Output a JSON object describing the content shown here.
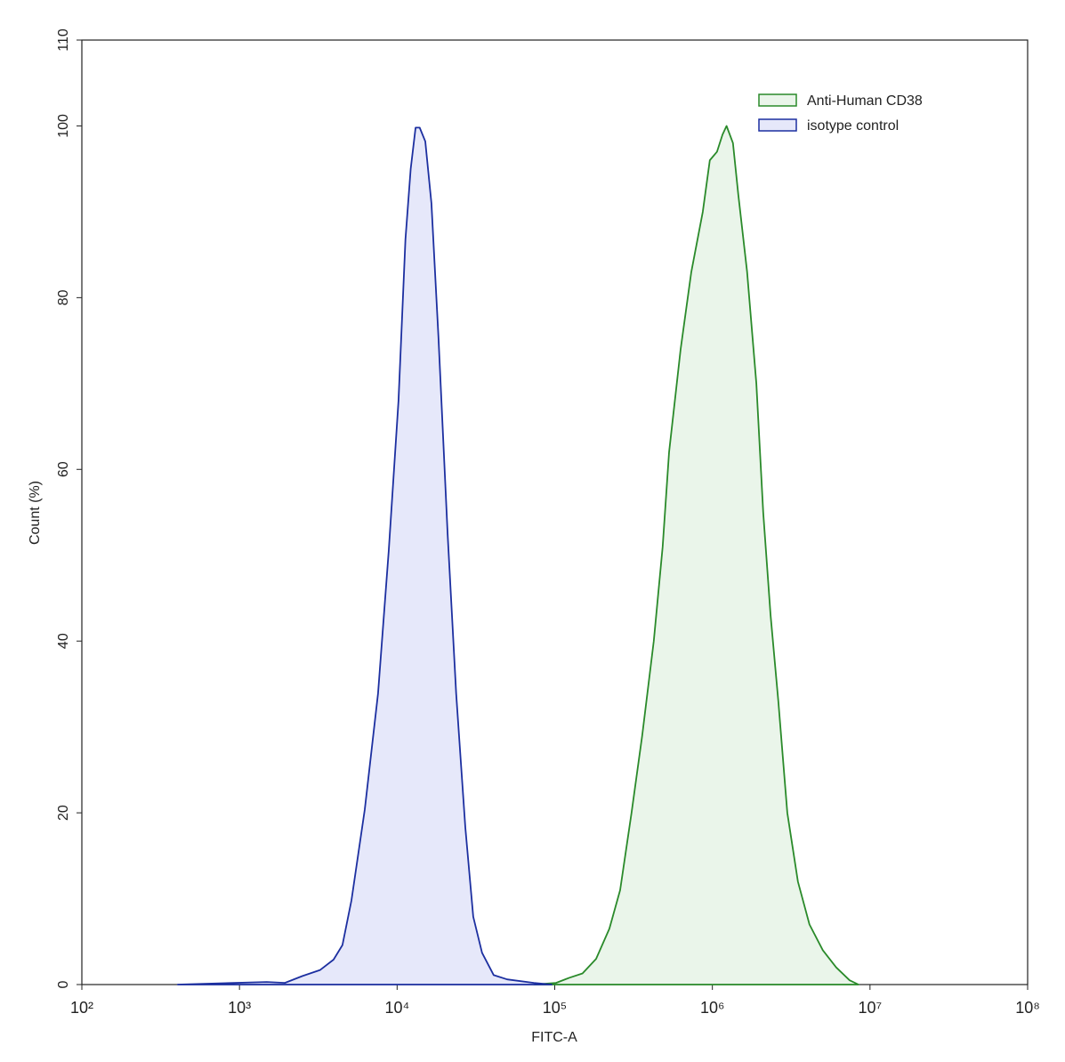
{
  "chart_data": {
    "type": "area",
    "xlabel": "FITC-A",
    "ylabel": "Count  (%)",
    "xscale": "log",
    "xlim": [
      100,
      100000000
    ],
    "xticks": [
      {
        "value": 100,
        "label": "10²"
      },
      {
        "value": 1000,
        "label": "10³"
      },
      {
        "value": 10000,
        "label": "10⁴"
      },
      {
        "value": 100000,
        "label": "10⁵"
      },
      {
        "value": 1000000,
        "label": "10⁶"
      },
      {
        "value": 10000000,
        "label": "10⁷"
      },
      {
        "value": 100000000,
        "label": "10⁸"
      }
    ],
    "ylim": [
      0,
      110
    ],
    "yticks": [
      0,
      20,
      40,
      60,
      80,
      100,
      110
    ],
    "legend": "upper-right",
    "series": [
      {
        "name": "Anti-Human CD38",
        "color": "#2a8a2a",
        "fill_color": "#eaf5ea",
        "x": [
          73600,
          102000,
          124000,
          150000,
          183000,
          222000,
          260000,
          307000,
          359000,
          425000,
          484000,
          531000,
          629000,
          735000,
          869000,
          964000,
          1070000,
          1160000,
          1230000,
          1350000,
          1460000,
          1660000,
          1900000,
          2100000,
          2340000,
          2620000,
          2990000,
          3490000,
          4130000,
          5020000,
          6100000,
          7420000,
          8450000
        ],
        "values": [
          0,
          0.2,
          0.8,
          1.3,
          3,
          6.5,
          11,
          20,
          29,
          40,
          51,
          62,
          74,
          83,
          90,
          96,
          97,
          99,
          100,
          98,
          92,
          83,
          70,
          55,
          43,
          33,
          20,
          12,
          7,
          4,
          2,
          0.5,
          0
        ]
      },
      {
        "name": "isotype control",
        "color": "#1c2fa0",
        "fill_color": "#e6e8fa",
        "x": [
          406,
          1490,
          1940,
          2510,
          3250,
          3950,
          4500,
          5130,
          6240,
          7570,
          8850,
          10200,
          11300,
          12200,
          13100,
          13900,
          15100,
          16500,
          18300,
          20900,
          23700,
          27100,
          30400,
          34600,
          41000,
          49900,
          73600,
          95500
        ],
        "values": [
          0,
          0.3,
          0.2,
          1,
          1.7,
          2.9,
          4.6,
          9.8,
          20.4,
          33.9,
          50.5,
          68,
          86.8,
          95,
          99.8,
          99.8,
          98.2,
          91,
          75.4,
          52.5,
          33.9,
          18.3,
          7.9,
          3.7,
          1.1,
          0.6,
          0.2,
          0
        ]
      }
    ]
  }
}
